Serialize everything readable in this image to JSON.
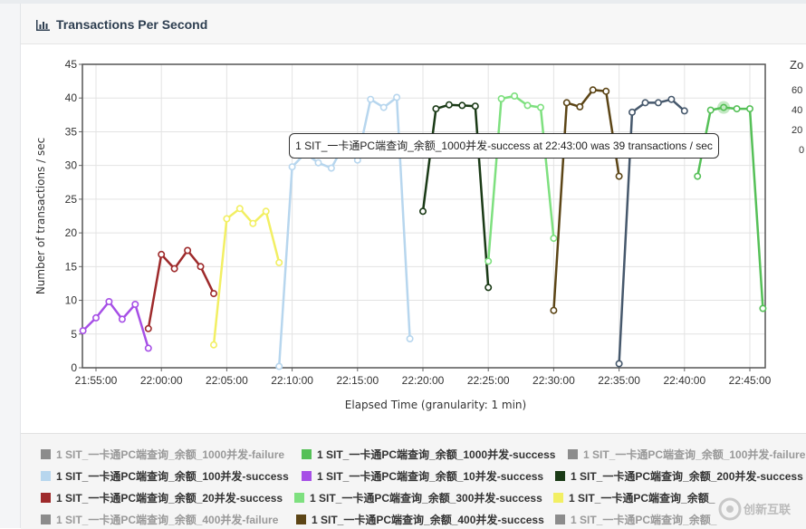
{
  "panel": {
    "title": "Transactions Per Second"
  },
  "tooltip": {
    "text": "1 SIT_一卡通PC端查询_余额_1000并发-success at 22:43:00 was 39 transactions / sec"
  },
  "zoom": {
    "label": "Zo",
    "ticks": [
      "60",
      "40",
      "20",
      "0"
    ]
  },
  "watermark": {
    "text": "创新互联"
  },
  "chart_data": {
    "type": "line",
    "xlabel": "Elapsed Time (granularity: 1 min)",
    "ylabel": "Number of transactions / sec",
    "ylim": [
      0,
      45
    ],
    "yticks": [
      "0",
      "5",
      "10",
      "15",
      "20",
      "25",
      "30",
      "35",
      "40",
      "45"
    ],
    "xtick_labels": [
      "21:55:00",
      "22:00:00",
      "22:05:00",
      "22:10:00",
      "22:15:00",
      "22:20:00",
      "22:25:00",
      "22:30:00",
      "22:35:00",
      "22:40:00",
      "22:45:00"
    ],
    "x_tick_minutes": [
      "21:55",
      "22:00",
      "22:05",
      "22:10",
      "22:15",
      "22:20",
      "22:25",
      "22:30",
      "22:35",
      "22:40",
      "22:45"
    ],
    "grid": true,
    "series": [
      {
        "name": "1 SIT_一卡通PC端查询_余额_10并发-success",
        "color": "#a64fe6",
        "x": [
          "21:54",
          "21:55",
          "21:56",
          "21:57",
          "21:58",
          "21:59"
        ],
        "y": [
          5.5,
          7.4,
          9.8,
          7.2,
          9.4,
          2.9
        ]
      },
      {
        "name": "1 SIT_一卡通PC端查询_余额_20并发-success",
        "color": "#9e2a2b",
        "x": [
          "21:59",
          "22:00",
          "22:01",
          "22:02",
          "22:03",
          "22:04"
        ],
        "y": [
          5.8,
          16.8,
          14.7,
          17.4,
          15.0,
          11.0
        ]
      },
      {
        "name": "1 SIT_一卡通PC端查询_余额_",
        "color": "#f2ef63",
        "x": [
          "22:04",
          "22:05",
          "22:06",
          "22:07",
          "22:08",
          "22:09"
        ],
        "y": [
          3.4,
          22.1,
          23.6,
          21.4,
          23.2,
          15.6
        ]
      },
      {
        "name": "1 SIT_一卡通PC端查询_余额_100并发-success",
        "color": "#b7d6ee",
        "x": [
          "22:09",
          "22:10",
          "22:11",
          "22:12",
          "22:13",
          "22:14",
          "22:15",
          "22:16",
          "22:17",
          "22:18",
          "22:19"
        ],
        "y": [
          0.2,
          29.8,
          31.8,
          30.4,
          29.6,
          33.2,
          30.8,
          39.8,
          38.6,
          40.1,
          4.3
        ]
      },
      {
        "name": "1 SIT_一卡通PC端查询_余额_200并发-success",
        "color": "#1a3a16",
        "x": [
          "22:20",
          "22:21",
          "22:22",
          "22:23",
          "22:24",
          "22:25"
        ],
        "y": [
          23.2,
          38.4,
          39.0,
          38.9,
          38.8,
          11.9
        ]
      },
      {
        "name": "1 SIT_一卡通PC端查询_余额_300并发-success",
        "color": "#7ee07f",
        "x": [
          "22:25",
          "22:26",
          "22:27",
          "22:28",
          "22:29",
          "22:30"
        ],
        "y": [
          15.8,
          39.9,
          40.3,
          38.9,
          38.6,
          19.2
        ]
      },
      {
        "name": "1 SIT_一卡通PC端查询_余额_400并发-success",
        "color": "#5c4516",
        "x": [
          "22:30",
          "22:31",
          "22:32",
          "22:33",
          "22:34",
          "22:35"
        ],
        "y": [
          8.5,
          39.3,
          38.7,
          41.2,
          41.0,
          28.4
        ]
      },
      {
        "name": "1 SIT_一卡通PC端查询_余额_500并发-success",
        "color": "#46586c",
        "x": [
          "22:35",
          "22:36",
          "22:37",
          "22:38",
          "22:39",
          "22:40"
        ],
        "y": [
          0.6,
          37.9,
          39.3,
          39.3,
          39.8,
          38.1
        ]
      },
      {
        "name": "1 SIT_一卡通PC端查询_余额_1000并发-success",
        "color": "#55c057",
        "x": [
          "22:41",
          "22:42",
          "22:43",
          "22:44",
          "22:45",
          "22:46"
        ],
        "y": [
          28.4,
          38.2,
          38.6,
          38.4,
          38.4,
          8.8
        ]
      }
    ]
  },
  "legend": [
    {
      "label": "1 SIT_一卡通PC端查询_余额_1000并发-failure",
      "color": "#8c8c8c",
      "state": "off"
    },
    {
      "label": "1 SIT_一卡通PC端查询_余额_1000并发-success",
      "color": "#55c057",
      "state": "on"
    },
    {
      "label": "1 SIT_一卡通PC端查询_余额_100并发-failure",
      "color": "#8c8c8c",
      "state": "off"
    },
    {
      "label": "1 SIT_一卡通PC端查询_余额_100并发-success",
      "color": "#b7d6ee",
      "state": "on"
    },
    {
      "label": "1 SIT_一卡通PC端查询_余额_10并发-success",
      "color": "#a64fe6",
      "state": "on"
    },
    {
      "label": "1 SIT_一卡通PC端查询_余额_200并发-success",
      "color": "#1a3a16",
      "state": "on"
    },
    {
      "label": "1 SIT_一卡通PC端查询_余额_20并发-success",
      "color": "#9e2a2b",
      "state": "on"
    },
    {
      "label": "1 SIT_一卡通PC端查询_余额_300并发-success",
      "color": "#7ee07f",
      "state": "on"
    },
    {
      "label": "1 SIT_一卡通PC端查询_余额_",
      "color": "#f2ef63",
      "state": "on"
    },
    {
      "label": "1 SIT_一卡通PC端查询_余额_400并发-failure",
      "color": "#8c8c8c",
      "state": "off"
    },
    {
      "label": "1 SIT_一卡通PC端查询_余额_400并发-success",
      "color": "#5c4516",
      "state": "on"
    },
    {
      "label": "1 SIT_一卡通PC端查询_余额_",
      "color": "#8c8c8c",
      "state": "off"
    }
  ]
}
